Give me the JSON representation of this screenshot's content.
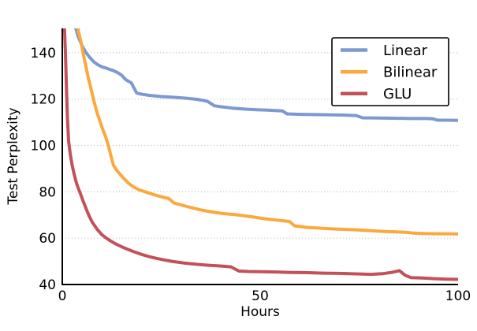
{
  "chart_data": {
    "type": "line",
    "title": "",
    "xlabel": "Hours",
    "ylabel": "Test Perplexity",
    "xlim": [
      0,
      100
    ],
    "ylim": [
      40,
      150.5
    ],
    "xticks": [
      0,
      50,
      100
    ],
    "yticks": [
      40,
      60,
      80,
      100,
      120,
      140
    ],
    "grid": "horizontal-dotted",
    "legend_position": "upper-right",
    "series": [
      {
        "name": "Linear",
        "color": "#7C99D0",
        "points": [
          [
            2.6,
            158
          ],
          [
            3.4,
            150.5
          ],
          [
            4,
            147
          ],
          [
            5,
            143
          ],
          [
            6,
            140
          ],
          [
            7,
            137.9
          ],
          [
            8,
            136
          ],
          [
            9,
            134.8
          ],
          [
            10,
            133.9
          ],
          [
            11,
            133.4
          ],
          [
            12,
            132.8
          ],
          [
            13,
            132.2
          ],
          [
            14,
            131.4
          ],
          [
            15,
            130.3
          ],
          [
            16,
            128.4
          ],
          [
            17,
            127.4
          ],
          [
            17.4,
            127.1
          ],
          [
            18.8,
            122.6
          ],
          [
            20,
            122.1
          ],
          [
            22,
            121.6
          ],
          [
            25,
            121.1
          ],
          [
            28,
            120.8
          ],
          [
            31,
            120.4
          ],
          [
            34,
            119.9
          ],
          [
            36,
            119.3
          ],
          [
            36.8,
            118.9
          ],
          [
            38.4,
            117.1
          ],
          [
            40,
            116.7
          ],
          [
            43,
            116.1
          ],
          [
            46,
            115.7
          ],
          [
            49,
            115.4
          ],
          [
            52,
            115.2
          ],
          [
            55.6,
            114.9
          ],
          [
            56.8,
            113.6
          ],
          [
            60,
            113.4
          ],
          [
            64,
            113.3
          ],
          [
            68,
            113.2
          ],
          [
            71,
            113.1
          ],
          [
            74.2,
            112.9
          ],
          [
            75.9,
            111.9
          ],
          [
            80,
            111.8
          ],
          [
            85,
            111.7
          ],
          [
            88,
            111.6
          ],
          [
            92,
            111.6
          ],
          [
            93.6,
            111.5
          ],
          [
            94.8,
            110.9
          ],
          [
            97,
            110.9
          ],
          [
            100,
            110.8
          ]
        ]
      },
      {
        "name": "Bilinear",
        "color": "#FBA83D",
        "points": [
          [
            3.55,
            160
          ],
          [
            4.05,
            149.5
          ],
          [
            4.8,
            144
          ],
          [
            5.3,
            139.5
          ],
          [
            5.8,
            135.5
          ],
          [
            6.4,
            130.5
          ],
          [
            7,
            126.3
          ],
          [
            7.6,
            121.9
          ],
          [
            8.2,
            117.8
          ],
          [
            8.8,
            114
          ],
          [
            9.5,
            110.5
          ],
          [
            10.2,
            107
          ],
          [
            11,
            103.5
          ],
          [
            11.8,
            99
          ],
          [
            12.3,
            95.5
          ],
          [
            12.9,
            91.5
          ],
          [
            13.7,
            89.4
          ],
          [
            14.6,
            87.5
          ],
          [
            15.7,
            85.5
          ],
          [
            16.8,
            83.6
          ],
          [
            18.1,
            82
          ],
          [
            19.5,
            80.8
          ],
          [
            21.4,
            79.7
          ],
          [
            23.5,
            78.6
          ],
          [
            25.8,
            77.5
          ],
          [
            26.8,
            77.2
          ],
          [
            28.2,
            75.2
          ],
          [
            30.7,
            74
          ],
          [
            32.7,
            73.1
          ],
          [
            34.7,
            72.3
          ],
          [
            37.7,
            71.3
          ],
          [
            40.7,
            70.6
          ],
          [
            44,
            70.1
          ],
          [
            48,
            69.2
          ],
          [
            51,
            68.4
          ],
          [
            54,
            67.8
          ],
          [
            57.4,
            67.2
          ],
          [
            58.7,
            65.3
          ],
          [
            62,
            64.6
          ],
          [
            64.3,
            64.4
          ],
          [
            68,
            64
          ],
          [
            71,
            63.8
          ],
          [
            74.3,
            63.6
          ],
          [
            78,
            63.2
          ],
          [
            81,
            62.9
          ],
          [
            84.3,
            62.7
          ],
          [
            87,
            62.5
          ],
          [
            88.5,
            62.2
          ],
          [
            91,
            62
          ],
          [
            94.2,
            61.9
          ],
          [
            97,
            61.9
          ],
          [
            100,
            61.8
          ]
        ]
      },
      {
        "name": "GLU",
        "color": "#C3515A",
        "points": [
          [
            0.35,
            162
          ],
          [
            0.55,
            150.5
          ],
          [
            0.8,
            140
          ],
          [
            1.0,
            128
          ],
          [
            1.3,
            112
          ],
          [
            1.6,
            102
          ],
          [
            2,
            96.5
          ],
          [
            2.5,
            91.5
          ],
          [
            3,
            87.5
          ],
          [
            3.5,
            84.2
          ],
          [
            4,
            81.7
          ],
          [
            4.5,
            79.5
          ],
          [
            5,
            77.2
          ],
          [
            5.5,
            75
          ],
          [
            6,
            72.8
          ],
          [
            6.8,
            69.5
          ],
          [
            7.6,
            66.8
          ],
          [
            8.8,
            63.8
          ],
          [
            10,
            61.5
          ],
          [
            11,
            60.2
          ],
          [
            12,
            59
          ],
          [
            13.5,
            57.5
          ],
          [
            15,
            56.3
          ],
          [
            16.5,
            55.2
          ],
          [
            18,
            54.2
          ],
          [
            20,
            53
          ],
          [
            22,
            52
          ],
          [
            24,
            51.2
          ],
          [
            26,
            50.5
          ],
          [
            28,
            49.9
          ],
          [
            31,
            49.2
          ],
          [
            34,
            48.7
          ],
          [
            37,
            48.3
          ],
          [
            40,
            48
          ],
          [
            42.6,
            47.6
          ],
          [
            44.6,
            45.8
          ],
          [
            47,
            45.6
          ],
          [
            50,
            45.5
          ],
          [
            54,
            45.4
          ],
          [
            58,
            45.2
          ],
          [
            62,
            45.1
          ],
          [
            66,
            44.9
          ],
          [
            70,
            44.8
          ],
          [
            74,
            44.6
          ],
          [
            78,
            44.4
          ],
          [
            81,
            44.7
          ],
          [
            83.2,
            45.2
          ],
          [
            85.2,
            46
          ],
          [
            86.6,
            44
          ],
          [
            88,
            43
          ],
          [
            91,
            42.8
          ],
          [
            94,
            42.5
          ],
          [
            97,
            42.3
          ],
          [
            100,
            42.2
          ]
        ]
      }
    ]
  },
  "colors": {
    "background": "#ffffff",
    "spine": "#000000",
    "grid": "#c6c6c6",
    "text": "#000000",
    "legend_border": "#000000",
    "legend_background": "#ffffff"
  }
}
